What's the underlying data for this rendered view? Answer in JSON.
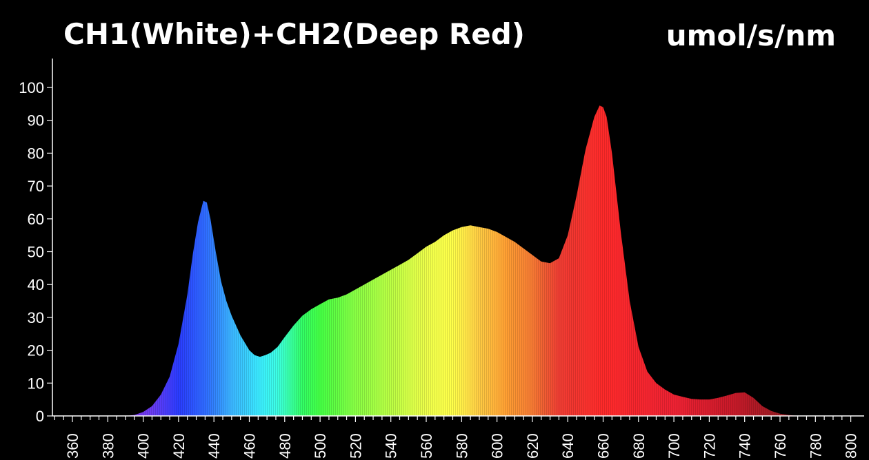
{
  "chart_data": {
    "type": "area",
    "title": "CH1(White)+CH2(Deep Red)",
    "unit_label": "umol/s/nm",
    "xlabel": "",
    "ylabel": "",
    "xlim": [
      350,
      805
    ],
    "ylim": [
      0,
      105
    ],
    "x_ticks": [
      360,
      380,
      400,
      420,
      440,
      460,
      480,
      500,
      520,
      540,
      560,
      580,
      600,
      620,
      640,
      660,
      680,
      700,
      720,
      740,
      760,
      780,
      800
    ],
    "y_ticks": [
      0,
      10,
      20,
      30,
      40,
      50,
      60,
      70,
      80,
      90,
      100
    ],
    "grid": false,
    "series": [
      {
        "x": [
          380,
          390,
          395,
          400,
          405,
          410,
          415,
          420,
          425,
          428,
          431,
          434,
          436,
          438,
          441,
          444,
          447,
          450,
          455,
          460,
          463,
          466,
          469,
          472,
          476,
          480,
          485,
          490,
          495,
          500,
          505,
          510,
          515,
          520,
          525,
          530,
          535,
          540,
          545,
          550,
          555,
          560,
          565,
          570,
          575,
          580,
          585,
          590,
          595,
          600,
          605,
          610,
          615,
          620,
          625,
          630,
          635,
          640,
          645,
          650,
          655,
          658,
          660,
          662,
          665,
          670,
          675,
          680,
          685,
          690,
          695,
          700,
          705,
          710,
          715,
          720,
          725,
          730,
          735,
          740,
          745,
          750,
          755,
          760,
          765,
          770,
          780,
          800
        ],
        "values": [
          0,
          0,
          0.3,
          1.2,
          3,
          6.5,
          12,
          22,
          37,
          49,
          59,
          65.5,
          65,
          60,
          50,
          41,
          35,
          30.5,
          24.5,
          20,
          18.5,
          18,
          18.5,
          19.2,
          21,
          24,
          27.5,
          30.5,
          32.5,
          34,
          35.5,
          36,
          37,
          38.5,
          40,
          41.5,
          43,
          44.5,
          46,
          47.5,
          49.5,
          51.5,
          53,
          55,
          56.5,
          57.5,
          58,
          57.5,
          57,
          56,
          54.5,
          53,
          51,
          49,
          47,
          46.5,
          48,
          55,
          67,
          81,
          91,
          94.5,
          94,
          91,
          80,
          56,
          35,
          21,
          13.5,
          10,
          8,
          6.5,
          5.8,
          5.2,
          5,
          5,
          5.5,
          6.2,
          7,
          7.2,
          5.5,
          3,
          1.5,
          0.7,
          0.3,
          0,
          0,
          0
        ]
      }
    ]
  },
  "colors": {
    "background": "#000000",
    "axes": "#ffffff",
    "text": "#ffffff"
  },
  "spectrum_gradient": [
    {
      "nm": 390,
      "color": "#7a2ee0"
    },
    {
      "nm": 405,
      "color": "#6a3cf4"
    },
    {
      "nm": 420,
      "color": "#2a3cff"
    },
    {
      "nm": 435,
      "color": "#2f6bff"
    },
    {
      "nm": 450,
      "color": "#3ab4ff"
    },
    {
      "nm": 465,
      "color": "#3ae8ff"
    },
    {
      "nm": 475,
      "color": "#3dffea"
    },
    {
      "nm": 490,
      "color": "#33ff66"
    },
    {
      "nm": 500,
      "color": "#44ff44"
    },
    {
      "nm": 520,
      "color": "#88ff44"
    },
    {
      "nm": 540,
      "color": "#bbff44"
    },
    {
      "nm": 560,
      "color": "#eeff4a"
    },
    {
      "nm": 575,
      "color": "#ffff4a"
    },
    {
      "nm": 590,
      "color": "#ffcc44"
    },
    {
      "nm": 605,
      "color": "#ffa033"
    },
    {
      "nm": 620,
      "color": "#f57a33"
    },
    {
      "nm": 635,
      "color": "#ee3d33"
    },
    {
      "nm": 660,
      "color": "#ff2a2a"
    },
    {
      "nm": 700,
      "color": "#ee2233"
    },
    {
      "nm": 730,
      "color": "#cc1a2a"
    },
    {
      "nm": 760,
      "color": "#991a22"
    }
  ]
}
